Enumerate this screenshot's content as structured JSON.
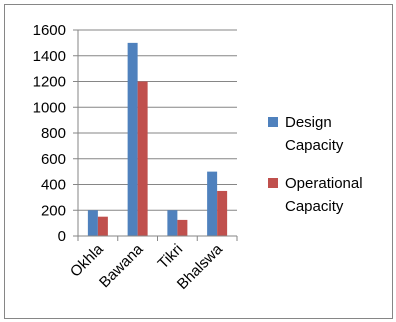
{
  "chart_data": {
    "type": "bar",
    "categories": [
      "Okhla",
      "Bawana",
      "Tikri",
      "Bhalswa"
    ],
    "series": [
      {
        "name": "Design Capacity",
        "name_lines": [
          "Design",
          "Capacity"
        ],
        "values": [
          200,
          1500,
          200,
          500
        ],
        "color": "#4F81BD"
      },
      {
        "name": "Operational Capacity",
        "name_lines": [
          "Operational",
          "Capacity"
        ],
        "values": [
          150,
          1200,
          125,
          350
        ],
        "color": "#C0504D"
      }
    ],
    "title": "",
    "xlabel": "",
    "ylabel": "",
    "ylim": [
      0,
      1600
    ],
    "yticks": [
      0,
      200,
      400,
      600,
      800,
      1000,
      1200,
      1400,
      1600
    ],
    "grid": true,
    "legend": "right"
  }
}
